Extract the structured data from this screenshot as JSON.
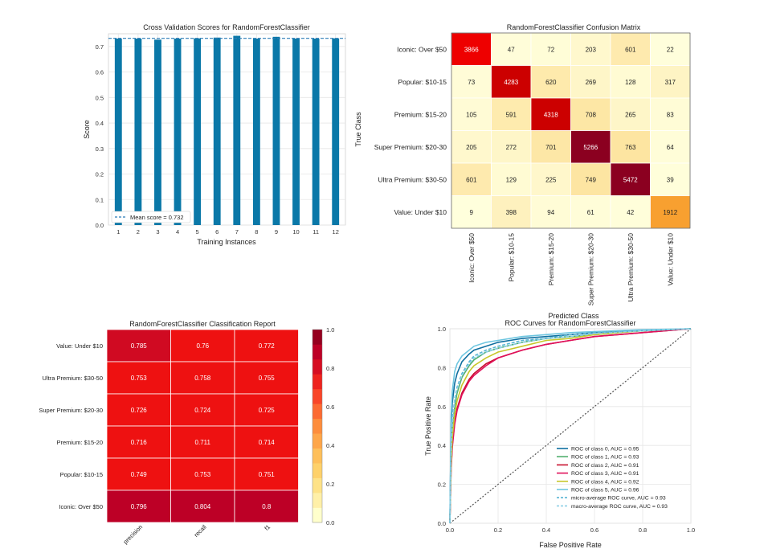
{
  "chart_data": [
    {
      "type": "bar",
      "title": "Cross Validation Scores for RandomForestClassifier",
      "xlabel": "Training Instances",
      "ylabel": "Score",
      "categories": [
        "1",
        "2",
        "3",
        "4",
        "5",
        "6",
        "7",
        "8",
        "9",
        "10",
        "11",
        "12"
      ],
      "values": [
        0.731,
        0.731,
        0.727,
        0.731,
        0.732,
        0.735,
        0.742,
        0.731,
        0.738,
        0.731,
        0.731,
        0.732
      ],
      "ylim": [
        0,
        0.75
      ],
      "yticks": [
        "0.0",
        "0.1",
        "0.2",
        "0.3",
        "0.4",
        "0.5",
        "0.6",
        "0.7"
      ],
      "mean": 0.732,
      "legend": "Mean score = 0.732",
      "legend_position": "bottom-left",
      "bar_color": "#0a78a8",
      "mean_color": "#2d7cb8",
      "grid": true
    },
    {
      "type": "heatmap",
      "title": "RandomForestClassifier Confusion Matrix",
      "xlabel": "Predicted Class",
      "ylabel": "True Class",
      "rows": [
        "Iconic: Over $50",
        "Popular: $10-15",
        "Premium: $15-20",
        "Super Premium: $20-30",
        "Ultra Premium: $30-50",
        "Value: Under $10"
      ],
      "cols": [
        "Iconic: Over $50",
        "Popular: $10-15",
        "Premium: $15-20",
        "Super Premium: $20-30",
        "Ultra Premium: $30-50",
        "Value: Under $10"
      ],
      "values": [
        [
          3866,
          47,
          72,
          203,
          601,
          22
        ],
        [
          73,
          4283,
          620,
          269,
          128,
          317
        ],
        [
          105,
          591,
          4318,
          708,
          265,
          83
        ],
        [
          205,
          272,
          701,
          5266,
          763,
          64
        ],
        [
          601,
          129,
          225,
          749,
          5472,
          39
        ],
        [
          9,
          398,
          94,
          61,
          42,
          1912
        ]
      ],
      "diagonal_colors": [
        "#ee0000",
        "#cc0000",
        "#cc0000",
        "#8b0020",
        "#8b0020",
        "#f8a030"
      ]
    },
    {
      "type": "heatmap",
      "title": "RandomForestClassifier Classification Report",
      "rows": [
        "Value: Under $10",
        "Ultra Premium: $30-50",
        "Super Premium: $20-30",
        "Premium: $15-20",
        "Popular: $10-15",
        "Iconic: Over $50"
      ],
      "cols": [
        "precision",
        "recall",
        "f1"
      ],
      "values": [
        [
          0.785,
          0.76,
          0.772
        ],
        [
          0.753,
          0.758,
          0.755
        ],
        [
          0.726,
          0.724,
          0.725
        ],
        [
          0.716,
          0.711,
          0.714
        ],
        [
          0.749,
          0.753,
          0.751
        ],
        [
          0.796,
          0.804,
          0.8
        ]
      ],
      "colorbar_ticks": [
        "0.0",
        "0.2",
        "0.4",
        "0.6",
        "0.8",
        "1.0"
      ],
      "colorbar_colors": [
        "#ffffcc",
        "#fff0a8",
        "#fee287",
        "#fed16a",
        "#febf5a",
        "#fea649",
        "#fd8d3c",
        "#fc6a32",
        "#f94528",
        "#ee231e",
        "#d60e22",
        "#bd0026",
        "#96001f"
      ]
    },
    {
      "type": "line",
      "title": "ROC Curves for RandomForestClassifier",
      "xlabel": "False Positive Rate",
      "ylabel": "True Positive Rate",
      "xlim": [
        0,
        1
      ],
      "ylim": [
        0,
        1
      ],
      "xticks": [
        "0.0",
        "0.2",
        "0.4",
        "0.6",
        "0.8",
        "1.0"
      ],
      "yticks": [
        "0.0",
        "0.2",
        "0.4",
        "0.6",
        "0.8",
        "1.0"
      ],
      "legend_position": "bottom-right",
      "series": [
        {
          "name": "ROC of class 0, AUC = 0.95",
          "color": "#0f6fa0",
          "dash": false,
          "x": [
            0,
            0.005,
            0.01,
            0.02,
            0.03,
            0.05,
            0.08,
            0.1,
            0.15,
            0.2,
            0.3,
            0.4,
            0.5,
            0.6,
            0.8,
            1.0
          ],
          "y": [
            0,
            0.5,
            0.62,
            0.72,
            0.77,
            0.83,
            0.87,
            0.89,
            0.91,
            0.93,
            0.95,
            0.96,
            0.97,
            0.98,
            0.99,
            1.0
          ]
        },
        {
          "name": "ROC of class 1, AUC = 0.93",
          "color": "#4fae6b",
          "dash": false,
          "x": [
            0,
            0.005,
            0.01,
            0.02,
            0.03,
            0.05,
            0.08,
            0.1,
            0.15,
            0.2,
            0.3,
            0.4,
            0.5,
            0.6,
            0.8,
            1.0
          ],
          "y": [
            0,
            0.35,
            0.48,
            0.6,
            0.67,
            0.75,
            0.81,
            0.84,
            0.88,
            0.9,
            0.93,
            0.95,
            0.96,
            0.97,
            0.99,
            1.0
          ]
        },
        {
          "name": "ROC of class 2, AUC = 0.91",
          "color": "#c8102e",
          "dash": false,
          "x": [
            0,
            0.005,
            0.01,
            0.02,
            0.03,
            0.05,
            0.08,
            0.1,
            0.15,
            0.2,
            0.3,
            0.4,
            0.5,
            0.6,
            0.8,
            1.0
          ],
          "y": [
            0,
            0.28,
            0.4,
            0.52,
            0.59,
            0.67,
            0.74,
            0.77,
            0.82,
            0.85,
            0.89,
            0.92,
            0.94,
            0.96,
            0.98,
            1.0
          ]
        },
        {
          "name": "ROC of class 3, AUC = 0.91",
          "color": "#e0105a",
          "dash": false,
          "x": [
            0,
            0.005,
            0.01,
            0.02,
            0.03,
            0.05,
            0.08,
            0.1,
            0.15,
            0.2,
            0.3,
            0.4,
            0.5,
            0.6,
            0.8,
            1.0
          ],
          "y": [
            0,
            0.27,
            0.39,
            0.51,
            0.58,
            0.66,
            0.73,
            0.76,
            0.81,
            0.85,
            0.89,
            0.92,
            0.94,
            0.96,
            0.98,
            1.0
          ]
        },
        {
          "name": "ROC of class 4, AUC = 0.92",
          "color": "#c7c72a",
          "dash": false,
          "x": [
            0,
            0.005,
            0.01,
            0.02,
            0.03,
            0.05,
            0.08,
            0.1,
            0.15,
            0.2,
            0.3,
            0.4,
            0.5,
            0.6,
            0.8,
            1.0
          ],
          "y": [
            0,
            0.3,
            0.44,
            0.56,
            0.63,
            0.71,
            0.78,
            0.81,
            0.85,
            0.88,
            0.91,
            0.94,
            0.95,
            0.97,
            0.99,
            1.0
          ]
        },
        {
          "name": "ROC of class 5, AUC = 0.96",
          "color": "#6ec6e0",
          "dash": false,
          "x": [
            0,
            0.005,
            0.01,
            0.02,
            0.03,
            0.05,
            0.08,
            0.1,
            0.15,
            0.2,
            0.3,
            0.4,
            0.5,
            0.6,
            0.8,
            1.0
          ],
          "y": [
            0,
            0.55,
            0.68,
            0.78,
            0.82,
            0.86,
            0.89,
            0.91,
            0.93,
            0.94,
            0.96,
            0.97,
            0.98,
            0.985,
            0.995,
            1.0
          ]
        },
        {
          "name": "micro-average ROC curve, AUC = 0.93",
          "color": "#56b4d3",
          "dash": true,
          "x": [
            0,
            0.005,
            0.01,
            0.02,
            0.03,
            0.05,
            0.08,
            0.1,
            0.15,
            0.2,
            0.3,
            0.4,
            0.5,
            0.6,
            0.8,
            1.0
          ],
          "y": [
            0,
            0.4,
            0.53,
            0.64,
            0.7,
            0.77,
            0.83,
            0.86,
            0.89,
            0.91,
            0.94,
            0.95,
            0.97,
            0.98,
            0.99,
            1.0
          ]
        },
        {
          "name": "macro-average ROC curve, AUC = 0.93",
          "color": "#8ccfe6",
          "dash": true,
          "x": [
            0,
            0.005,
            0.01,
            0.02,
            0.03,
            0.05,
            0.08,
            0.1,
            0.15,
            0.2,
            0.3,
            0.4,
            0.5,
            0.6,
            0.8,
            1.0
          ],
          "y": [
            0,
            0.38,
            0.51,
            0.63,
            0.69,
            0.76,
            0.82,
            0.85,
            0.88,
            0.9,
            0.93,
            0.95,
            0.96,
            0.975,
            0.99,
            1.0
          ]
        }
      ],
      "diagonal": true
    }
  ]
}
